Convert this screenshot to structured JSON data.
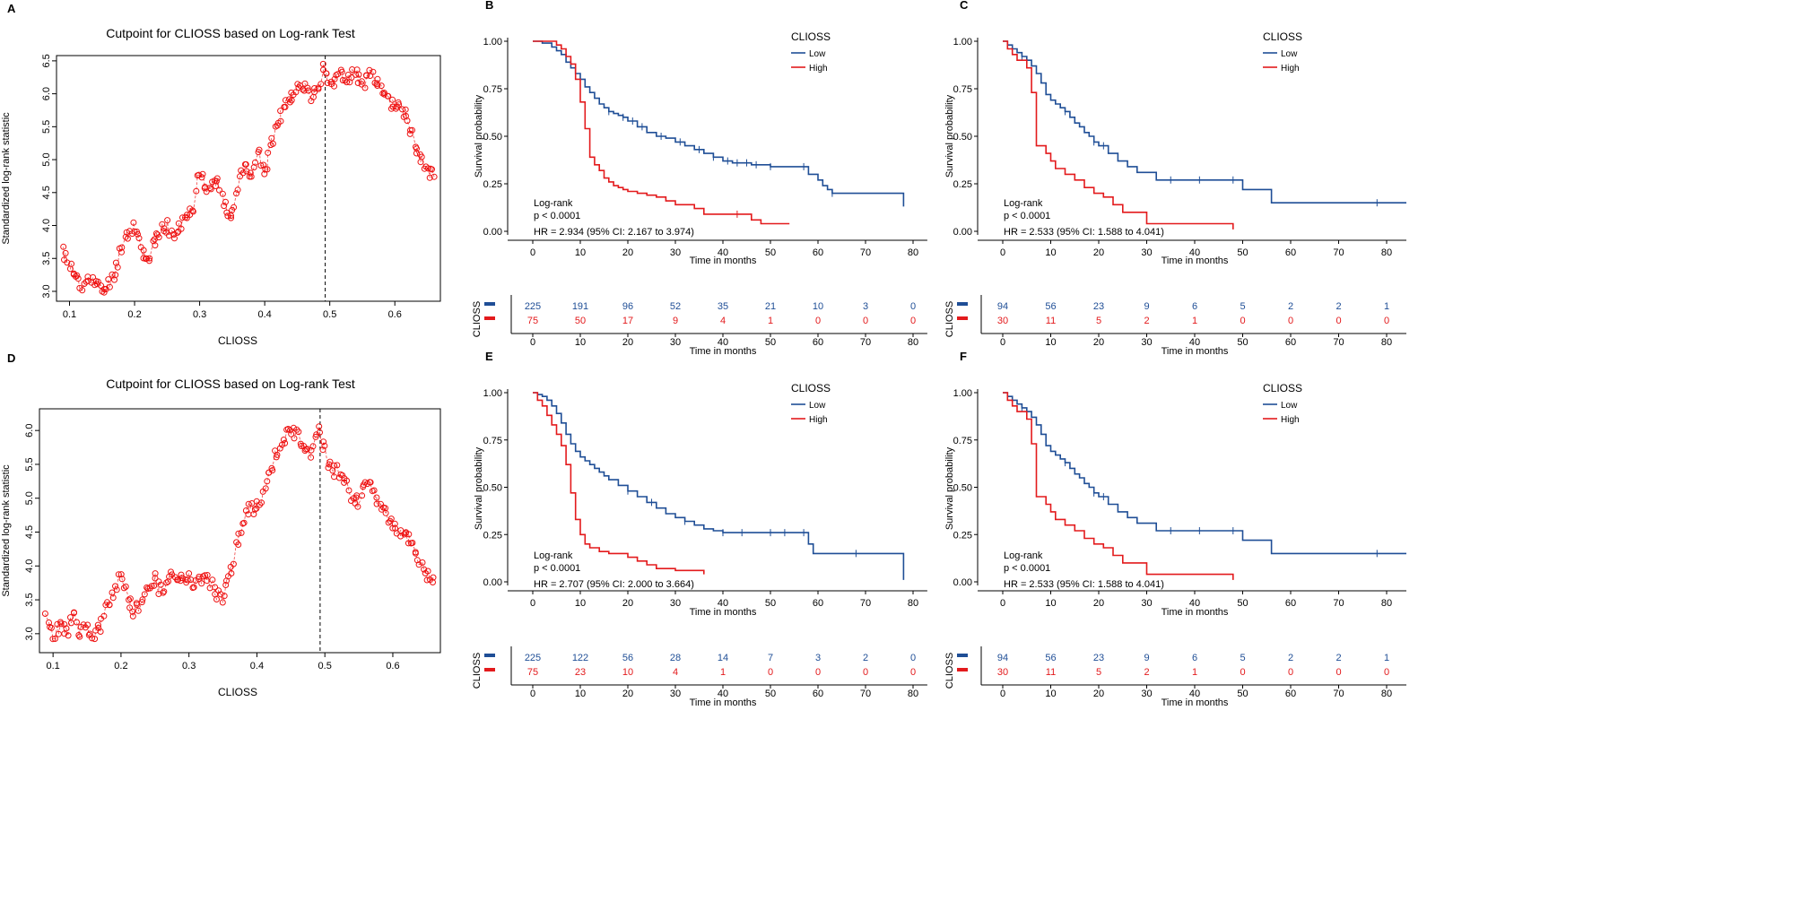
{
  "colors": {
    "low": "#1f4e96",
    "high": "#e31a1c",
    "scatter": "#ee1111",
    "axis": "#000000",
    "cut": "#000000"
  },
  "chart_data": [
    {
      "type": "scatter",
      "panel_label": "A",
      "title": "Cutpoint for CLIOSS based on Log-rank Test",
      "xlabel": "CLIOSS",
      "ylabel": "Standardized log-rank statistic",
      "xlim": [
        0.08,
        0.67
      ],
      "ylim": [
        2.85,
        6.58
      ],
      "xticks": [
        0.1,
        0.2,
        0.3,
        0.4,
        0.5,
        0.6
      ],
      "xtick_labels": [
        "0.1",
        "0.2",
        "0.3",
        "0.4",
        "0.5",
        "0.6"
      ],
      "yticks": [
        3.0,
        3.5,
        4.0,
        4.5,
        5.0,
        5.5,
        6.0,
        6.5
      ],
      "ytick_labels": [
        "3.0",
        "3.5",
        "4.0",
        "4.5",
        "5.0",
        "5.5",
        "6.0",
        "6.5"
      ],
      "cutpoint": 0.493,
      "trace_x": [
        0.09,
        0.1,
        0.11,
        0.12,
        0.13,
        0.14,
        0.15,
        0.16,
        0.17,
        0.18,
        0.19,
        0.2,
        0.21,
        0.22,
        0.23,
        0.24,
        0.25,
        0.26,
        0.27,
        0.28,
        0.29,
        0.3,
        0.31,
        0.32,
        0.33,
        0.34,
        0.35,
        0.36,
        0.37,
        0.38,
        0.39,
        0.4,
        0.41,
        0.42,
        0.43,
        0.44,
        0.45,
        0.46,
        0.47,
        0.48,
        0.49,
        0.5,
        0.51,
        0.52,
        0.53,
        0.54,
        0.55,
        0.56,
        0.57,
        0.58,
        0.59,
        0.6,
        0.61,
        0.62,
        0.63,
        0.64,
        0.65,
        0.66
      ],
      "trace_y": [
        3.6,
        3.4,
        3.2,
        3.0,
        3.3,
        3.1,
        3.0,
        3.1,
        3.3,
        3.7,
        3.9,
        4.0,
        3.65,
        3.5,
        3.7,
        3.9,
        4.0,
        3.8,
        4.0,
        4.1,
        4.3,
        4.9,
        4.6,
        4.65,
        4.6,
        4.25,
        4.2,
        4.65,
        4.9,
        4.8,
        5.1,
        4.8,
        5.2,
        5.6,
        5.8,
        6.0,
        6.05,
        6.1,
        6.0,
        6.0,
        6.4,
        6.2,
        6.2,
        6.3,
        6.25,
        6.35,
        6.1,
        6.3,
        6.2,
        6.0,
        5.9,
        5.85,
        5.8,
        5.6,
        5.3,
        4.95,
        4.85,
        4.8
      ],
      "n_points": 230,
      "seed": 11
    },
    {
      "type": "line",
      "subtype": "kaplan-meier",
      "panel_label": "B",
      "legend_title": "CLIOSS",
      "xlabel": "Time in months",
      "ylabel": "Survival probability",
      "xlim": [
        -5,
        83
      ],
      "ylim": [
        -0.05,
        1.05
      ],
      "xticks": [
        0,
        10,
        20,
        30,
        40,
        50,
        60,
        70,
        80
      ],
      "yticks": [
        0.0,
        0.25,
        0.5,
        0.75,
        1.0
      ],
      "ytick_labels": [
        "0.00",
        "0.25",
        "0.50",
        "0.75",
        "1.00"
      ],
      "logrank_label": "Log-rank",
      "p_label": "p < 0.0001",
      "hr_label": "HR = 2.934 (95% CI: 2.167 to 3.974)",
      "series": [
        {
          "name": "Low",
          "key": "low",
          "x": [
            0,
            2,
            4,
            5,
            6,
            7,
            8,
            9,
            10,
            11,
            12,
            13,
            14,
            15,
            16,
            17,
            18,
            19,
            20,
            22,
            24,
            26,
            28,
            30,
            32,
            34,
            36,
            38,
            40,
            42,
            44,
            46,
            50,
            53,
            58,
            60,
            61,
            62,
            63,
            78,
            78
          ],
          "y": [
            1.0,
            0.99,
            0.97,
            0.95,
            0.93,
            0.89,
            0.86,
            0.83,
            0.8,
            0.76,
            0.73,
            0.7,
            0.67,
            0.65,
            0.63,
            0.62,
            0.61,
            0.6,
            0.58,
            0.55,
            0.52,
            0.5,
            0.49,
            0.47,
            0.45,
            0.43,
            0.41,
            0.39,
            0.37,
            0.36,
            0.36,
            0.35,
            0.34,
            0.34,
            0.3,
            0.27,
            0.24,
            0.22,
            0.2,
            0.2,
            0.13
          ],
          "censor_x": [
            16,
            19,
            21,
            23,
            27,
            31,
            35,
            38,
            41,
            43,
            45,
            47,
            50,
            57,
            63
          ]
        },
        {
          "name": "High",
          "key": "high",
          "x": [
            0,
            5,
            6,
            7,
            8,
            9,
            10,
            11,
            12,
            13,
            14,
            15,
            16,
            17,
            18,
            19,
            20,
            22,
            24,
            26,
            28,
            30,
            34,
            36,
            46,
            48,
            54
          ],
          "y": [
            1.0,
            0.98,
            0.96,
            0.92,
            0.88,
            0.8,
            0.68,
            0.54,
            0.39,
            0.35,
            0.32,
            0.28,
            0.26,
            0.24,
            0.23,
            0.22,
            0.21,
            0.2,
            0.19,
            0.18,
            0.16,
            0.14,
            0.12,
            0.09,
            0.06,
            0.04,
            0.04
          ],
          "censor_x": [
            43
          ]
        }
      ],
      "risk_table": {
        "row_label": "CLIOSS",
        "xlabel": "Time in months",
        "times": [
          0,
          10,
          20,
          30,
          40,
          50,
          60,
          70,
          80
        ],
        "low": [
          "225",
          "191",
          "96",
          "52",
          "35",
          "21",
          "10",
          "3",
          "0"
        ],
        "high": [
          "75",
          "50",
          "17",
          "9",
          "4",
          "1",
          "0",
          "0",
          "0"
        ]
      }
    },
    {
      "type": "line",
      "subtype": "kaplan-meier",
      "panel_label": "C",
      "legend_title": "CLIOSS",
      "xlabel": "Time in months",
      "ylabel": "Survival probability",
      "xlim": [
        -5,
        85
      ],
      "ylim": [
        -0.05,
        1.05
      ],
      "xticks": [
        0,
        10,
        20,
        30,
        40,
        50,
        60,
        70,
        80
      ],
      "yticks": [
        0.0,
        0.25,
        0.5,
        0.75,
        1.0
      ],
      "ytick_labels": [
        "0.00",
        "0.25",
        "0.50",
        "0.75",
        "1.00"
      ],
      "logrank_label": "Log-rank",
      "p_label": "p < 0.0001",
      "hr_label": "HR = 2.533 (95% CI: 1.588 to 4.041)",
      "series": [
        {
          "name": "Low",
          "key": "low",
          "x": [
            0,
            1,
            2,
            3,
            4,
            5,
            6,
            7,
            8,
            9,
            10,
            11,
            12,
            13,
            14,
            15,
            16,
            17,
            18,
            19,
            20,
            22,
            24,
            26,
            28,
            32,
            48,
            50,
            56,
            85
          ],
          "y": [
            1.0,
            0.98,
            0.96,
            0.94,
            0.92,
            0.9,
            0.87,
            0.83,
            0.78,
            0.72,
            0.69,
            0.67,
            0.65,
            0.63,
            0.6,
            0.57,
            0.55,
            0.52,
            0.5,
            0.47,
            0.45,
            0.41,
            0.37,
            0.34,
            0.31,
            0.27,
            0.27,
            0.22,
            0.15,
            0.15
          ],
          "censor_x": [
            4,
            13,
            19,
            21,
            35,
            41,
            48,
            78
          ]
        },
        {
          "name": "High",
          "key": "high",
          "x": [
            0,
            1,
            2,
            3,
            5,
            6,
            7,
            9,
            10,
            11,
            13,
            15,
            17,
            19,
            21,
            23,
            25,
            30,
            48
          ],
          "y": [
            1.0,
            0.96,
            0.93,
            0.9,
            0.86,
            0.73,
            0.45,
            0.41,
            0.37,
            0.33,
            0.3,
            0.27,
            0.23,
            0.2,
            0.18,
            0.14,
            0.1,
            0.04,
            0.01
          ]
        }
      ],
      "risk_table": {
        "row_label": "CLIOSS",
        "xlabel": "Time in months",
        "times": [
          0,
          10,
          20,
          30,
          40,
          50,
          60,
          70,
          80
        ],
        "low": [
          "94",
          "56",
          "23",
          "9",
          "6",
          "5",
          "2",
          "2",
          "1"
        ],
        "high": [
          "30",
          "11",
          "5",
          "2",
          "1",
          "0",
          "0",
          "0",
          "0"
        ]
      }
    },
    {
      "type": "scatter",
      "panel_label": "D",
      "title": "Cutpoint for CLIOSS based on Log-rank Test",
      "xlabel": "CLIOSS",
      "ylabel": "Standardized log-rank statistic",
      "xlim": [
        0.08,
        0.67
      ],
      "ylim": [
        2.72,
        6.32
      ],
      "xticks": [
        0.1,
        0.2,
        0.3,
        0.4,
        0.5,
        0.6
      ],
      "xtick_labels": [
        "0.1",
        "0.2",
        "0.3",
        "0.4",
        "0.5",
        "0.6"
      ],
      "yticks": [
        3.0,
        3.5,
        4.0,
        4.5,
        5.0,
        5.5,
        6.0
      ],
      "ytick_labels": [
        "3.0",
        "3.5",
        "4.0",
        "4.5",
        "5.0",
        "5.5",
        "6.0"
      ],
      "cutpoint": 0.493,
      "trace_x": [
        0.09,
        0.1,
        0.11,
        0.12,
        0.13,
        0.14,
        0.15,
        0.16,
        0.17,
        0.18,
        0.19,
        0.2,
        0.21,
        0.22,
        0.23,
        0.24,
        0.25,
        0.26,
        0.27,
        0.28,
        0.29,
        0.3,
        0.31,
        0.32,
        0.33,
        0.34,
        0.35,
        0.36,
        0.37,
        0.38,
        0.39,
        0.4,
        0.41,
        0.42,
        0.43,
        0.44,
        0.45,
        0.46,
        0.47,
        0.48,
        0.49,
        0.5,
        0.51,
        0.52,
        0.53,
        0.54,
        0.55,
        0.56,
        0.57,
        0.58,
        0.59,
        0.6,
        0.61,
        0.62,
        0.63,
        0.64,
        0.65,
        0.66
      ],
      "trace_y": [
        3.2,
        3.0,
        3.1,
        3.0,
        3.3,
        3.0,
        3.1,
        2.95,
        3.1,
        3.4,
        3.6,
        3.9,
        3.5,
        3.3,
        3.5,
        3.7,
        3.8,
        3.6,
        3.8,
        3.9,
        3.8,
        3.9,
        3.7,
        3.85,
        3.8,
        3.6,
        3.5,
        3.9,
        4.3,
        4.6,
        4.9,
        4.85,
        5.1,
        5.4,
        5.7,
        5.9,
        6.0,
        5.9,
        5.8,
        5.7,
        6.05,
        5.7,
        5.4,
        5.4,
        5.3,
        5.0,
        4.9,
        5.3,
        5.2,
        4.9,
        4.75,
        4.6,
        4.5,
        4.5,
        4.3,
        4.0,
        3.85,
        3.8
      ],
      "n_points": 230,
      "seed": 23
    },
    {
      "type": "line",
      "subtype": "kaplan-meier",
      "panel_label": "E",
      "legend_title": "CLIOSS",
      "xlabel": "Time in months",
      "ylabel": "Survival probability",
      "xlim": [
        -5,
        83
      ],
      "ylim": [
        -0.05,
        1.05
      ],
      "xticks": [
        0,
        10,
        20,
        30,
        40,
        50,
        60,
        70,
        80
      ],
      "yticks": [
        0.0,
        0.25,
        0.5,
        0.75,
        1.0
      ],
      "ytick_labels": [
        "0.00",
        "0.25",
        "0.50",
        "0.75",
        "1.00"
      ],
      "logrank_label": "Log-rank",
      "p_label": "p < 0.0001",
      "hr_label": "HR = 2.707 (95% CI: 2.000 to 3.664)",
      "series": [
        {
          "name": "Low",
          "key": "low",
          "x": [
            0,
            1,
            2,
            3,
            4,
            5,
            6,
            7,
            8,
            9,
            10,
            11,
            12,
            13,
            14,
            15,
            16,
            18,
            20,
            22,
            24,
            26,
            28,
            30,
            32,
            34,
            36,
            38,
            40,
            42,
            58,
            59,
            78,
            78
          ],
          "y": [
            1.0,
            0.99,
            0.98,
            0.96,
            0.93,
            0.89,
            0.84,
            0.78,
            0.73,
            0.69,
            0.66,
            0.64,
            0.62,
            0.6,
            0.58,
            0.56,
            0.54,
            0.51,
            0.48,
            0.45,
            0.42,
            0.39,
            0.36,
            0.34,
            0.32,
            0.3,
            0.28,
            0.27,
            0.26,
            0.26,
            0.2,
            0.15,
            0.15,
            0.01
          ],
          "censor_x": [
            20,
            25,
            32,
            40,
            44,
            50,
            53,
            57,
            68
          ]
        },
        {
          "name": "High",
          "key": "high",
          "x": [
            0,
            1,
            2,
            3,
            4,
            5,
            6,
            7,
            8,
            9,
            10,
            11,
            12,
            14,
            16,
            20,
            22,
            24,
            26,
            30,
            36
          ],
          "y": [
            1.0,
            0.96,
            0.93,
            0.88,
            0.83,
            0.78,
            0.72,
            0.62,
            0.47,
            0.33,
            0.25,
            0.2,
            0.18,
            0.16,
            0.15,
            0.13,
            0.11,
            0.09,
            0.07,
            0.06,
            0.04
          ]
        }
      ],
      "risk_table": {
        "row_label": "CLIOSS",
        "xlabel": "Time in months",
        "times": [
          0,
          10,
          20,
          30,
          40,
          50,
          60,
          70,
          80
        ],
        "low": [
          "225",
          "122",
          "56",
          "28",
          "14",
          "7",
          "3",
          "2",
          "0"
        ],
        "high": [
          "75",
          "23",
          "10",
          "4",
          "1",
          "0",
          "0",
          "0",
          "0"
        ]
      }
    },
    {
      "type": "line",
      "subtype": "kaplan-meier",
      "panel_label": "F",
      "legend_title": "CLIOSS",
      "xlabel": "Time in months",
      "ylabel": "Survival probability",
      "xlim": [
        -5,
        85
      ],
      "ylim": [
        -0.05,
        1.05
      ],
      "xticks": [
        0,
        10,
        20,
        30,
        40,
        50,
        60,
        70,
        80
      ],
      "yticks": [
        0.0,
        0.25,
        0.5,
        0.75,
        1.0
      ],
      "ytick_labels": [
        "0.00",
        "0.25",
        "0.50",
        "0.75",
        "1.00"
      ],
      "logrank_label": "Log-rank",
      "p_label": "p < 0.0001",
      "hr_label": "HR = 2.533 (95% CI: 1.588 to 4.041)",
      "series": [
        {
          "name": "Low",
          "key": "low",
          "x": [
            0,
            1,
            2,
            3,
            4,
            5,
            6,
            7,
            8,
            9,
            10,
            11,
            12,
            13,
            14,
            15,
            16,
            17,
            18,
            19,
            20,
            22,
            24,
            26,
            28,
            32,
            48,
            50,
            56,
            85
          ],
          "y": [
            1.0,
            0.98,
            0.96,
            0.94,
            0.92,
            0.9,
            0.87,
            0.83,
            0.78,
            0.72,
            0.69,
            0.67,
            0.65,
            0.63,
            0.6,
            0.57,
            0.55,
            0.52,
            0.5,
            0.47,
            0.45,
            0.41,
            0.37,
            0.34,
            0.31,
            0.27,
            0.27,
            0.22,
            0.15,
            0.15
          ],
          "censor_x": [
            4,
            13,
            19,
            21,
            35,
            41,
            48,
            78
          ]
        },
        {
          "name": "High",
          "key": "high",
          "x": [
            0,
            1,
            2,
            3,
            5,
            6,
            7,
            9,
            10,
            11,
            13,
            15,
            17,
            19,
            21,
            23,
            25,
            30,
            48
          ],
          "y": [
            1.0,
            0.96,
            0.93,
            0.9,
            0.86,
            0.73,
            0.45,
            0.41,
            0.37,
            0.33,
            0.3,
            0.27,
            0.23,
            0.2,
            0.18,
            0.14,
            0.1,
            0.04,
            0.01
          ]
        }
      ],
      "risk_table": {
        "row_label": "CLIOSS",
        "xlabel": "Time in months",
        "times": [
          0,
          10,
          20,
          30,
          40,
          50,
          60,
          70,
          80
        ],
        "low": [
          "94",
          "56",
          "23",
          "9",
          "6",
          "5",
          "2",
          "2",
          "1"
        ],
        "high": [
          "30",
          "11",
          "5",
          "2",
          "1",
          "0",
          "0",
          "0",
          "0"
        ]
      }
    }
  ]
}
